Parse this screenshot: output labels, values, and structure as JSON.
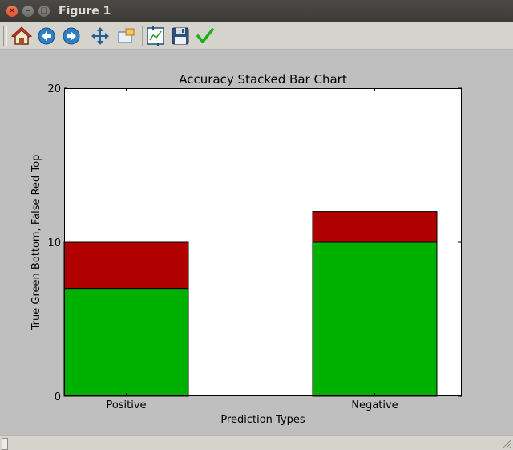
{
  "window": {
    "title": "Figure 1"
  },
  "toolbar": {
    "buttons": [
      {
        "name": "home-button",
        "icon": "home-icon"
      },
      {
        "name": "back-button",
        "icon": "back-arrow-icon"
      },
      {
        "name": "forward-button",
        "icon": "forward-arrow-icon"
      },
      {
        "name": "pan-button",
        "icon": "move-icon"
      },
      {
        "name": "zoom-button",
        "icon": "zoom-rect-icon"
      },
      {
        "name": "subplots-button",
        "icon": "subplots-icon"
      },
      {
        "name": "save-button",
        "icon": "floppy-disk-icon"
      },
      {
        "name": "edit-button",
        "icon": "checkmark-icon"
      }
    ]
  },
  "colors": {
    "true_green": "#00b000",
    "false_red": "#b00000"
  },
  "chart_data": {
    "type": "bar",
    "stacked": true,
    "title": "Accuracy Stacked Bar Chart",
    "xlabel": "Prediction Types",
    "ylabel": "True Green Bottom, False Red Top",
    "categories": [
      "Positive",
      "Negative"
    ],
    "series": [
      {
        "values": [
          7,
          10
        ],
        "color": "#00b000"
      },
      {
        "values": [
          3,
          2
        ],
        "color": "#b00000"
      }
    ],
    "ylim": [
      0,
      20
    ],
    "yticks": [
      0,
      10,
      20
    ],
    "grid": false
  }
}
